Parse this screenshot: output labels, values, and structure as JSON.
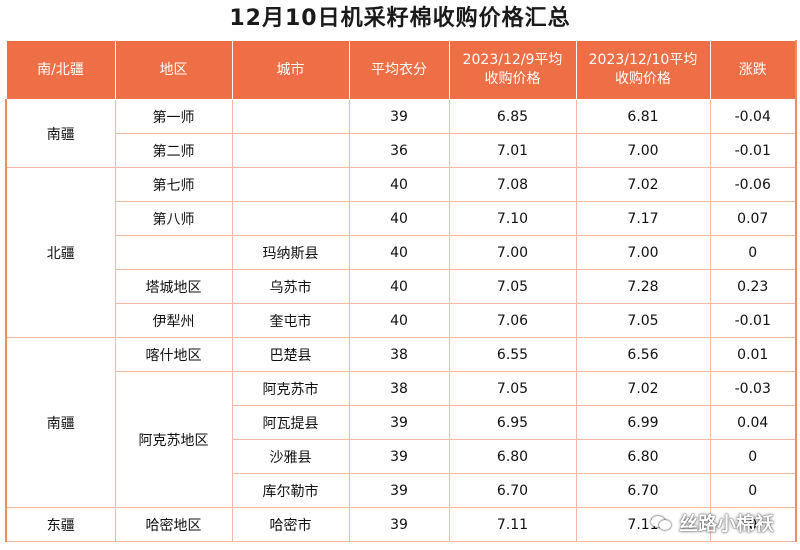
{
  "title": "12月10日机采籽棉收购价格汇总",
  "headers": {
    "region_group": "南/北疆",
    "area": "地区",
    "city": "城市",
    "avg_fraction": "平均衣分",
    "price_prev": "2023/12/9平均\n收购价格",
    "price_curr": "2023/12/10平均\n收购价格",
    "change": "涨跌"
  },
  "rows": [
    {
      "group": "南疆",
      "area": "第一师",
      "city": "",
      "avg": "39",
      "prev": "6.85",
      "curr": "6.81",
      "chg": "-0.04"
    },
    {
      "group": "",
      "area": "第二师",
      "city": "",
      "avg": "36",
      "prev": "7.01",
      "curr": "7.00",
      "chg": "-0.01"
    },
    {
      "group": "北疆",
      "area": "第七师",
      "city": "",
      "avg": "40",
      "prev": "7.08",
      "curr": "7.02",
      "chg": "-0.06"
    },
    {
      "group": "",
      "area": "第八师",
      "city": "",
      "avg": "40",
      "prev": "7.10",
      "curr": "7.17",
      "chg": "0.07"
    },
    {
      "group": "",
      "area": "",
      "city": "玛纳斯县",
      "avg": "40",
      "prev": "7.00",
      "curr": "7.00",
      "chg": "0"
    },
    {
      "group": "",
      "area": "塔城地区",
      "city": "乌苏市",
      "avg": "40",
      "prev": "7.05",
      "curr": "7.28",
      "chg": "0.23"
    },
    {
      "group": "",
      "area": "伊犁州",
      "city": "奎屯市",
      "avg": "40",
      "prev": "7.06",
      "curr": "7.05",
      "chg": "-0.01"
    },
    {
      "group": "南疆",
      "area": "喀什地区",
      "city": "巴楚县",
      "avg": "38",
      "prev": "6.55",
      "curr": "6.56",
      "chg": "0.01"
    },
    {
      "group": "",
      "area": "阿克苏地区",
      "city": "阿克苏市",
      "avg": "38",
      "prev": "7.05",
      "curr": "7.02",
      "chg": "-0.03"
    },
    {
      "group": "",
      "area": "",
      "city": "阿瓦提县",
      "avg": "39",
      "prev": "6.95",
      "curr": "6.99",
      "chg": "0.04"
    },
    {
      "group": "",
      "area": "",
      "city": "沙雅县",
      "avg": "39",
      "prev": "6.80",
      "curr": "6.80",
      "chg": "0"
    },
    {
      "group": "",
      "area": "",
      "city": "库尔勒市",
      "avg": "39",
      "prev": "6.70",
      "curr": "6.70",
      "chg": "0"
    },
    {
      "group": "东疆",
      "area": "哈密地区",
      "city": "哈密市",
      "avg": "39",
      "prev": "7.11",
      "curr": "7.11",
      "chg": "0"
    }
  ],
  "watermark": "丝路小棉袄",
  "colors": {
    "header_bg": "#ee6e45",
    "grid": "#f3b9a3"
  }
}
